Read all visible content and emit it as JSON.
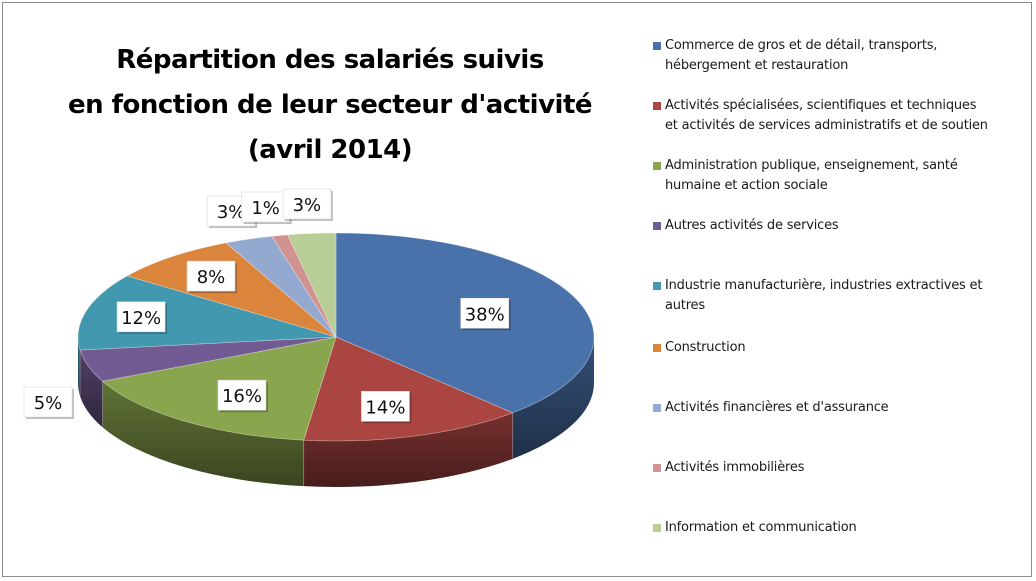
{
  "chart_data": {
    "type": "pie",
    "title_lines": [
      "Répartition des salariés suivis",
      "en fonction de leur secteur d'activité",
      "(avril 2014)"
    ],
    "labels": [
      "Commerce de gros et de détail, transports, hébergement et restauration",
      "Activités spécialisées, scientifiques et techniques et activités de services administratifs et de soutien",
      "Administration publique, enseignement, santé humaine et action sociale",
      "Autres activités de services",
      "Industrie manufacturière, industries extractives  et autres",
      "Construction",
      "Activités financières et d'assurance",
      "Activités immobilières",
      "Information et communication"
    ],
    "legend_lines": [
      [
        "Commerce de gros et de détail, transports,",
        "hébergement et restauration"
      ],
      [
        "Activités spécialisées, scientifiques et techniques",
        "et activités de services administratifs et de soutien"
      ],
      [
        "Administration publique, enseignement, santé",
        "humaine et action sociale"
      ],
      [
        "Autres activités de services"
      ],
      [
        "Industrie manufacturière, industries extractives  et",
        "autres"
      ],
      [
        "Construction"
      ],
      [
        "Activités financières et d'assurance"
      ],
      [
        "Activités immobilières"
      ],
      [
        "Information et communication"
      ]
    ],
    "values": [
      38,
      14,
      16,
      5,
      12,
      8,
      3,
      1,
      3
    ],
    "data_labels": [
      "38%",
      "14%",
      "16%",
      "5%",
      "12%",
      "8%",
      "3%",
      "1%",
      "3%"
    ],
    "colors": [
      "#4a72aa",
      "#aa4542",
      "#89a54d",
      "#715b92",
      "#4198af",
      "#db843c",
      "#93a9cf",
      "#d19392",
      "#b9cd96"
    ],
    "legend_position": "right",
    "style": "3d-pie"
  }
}
